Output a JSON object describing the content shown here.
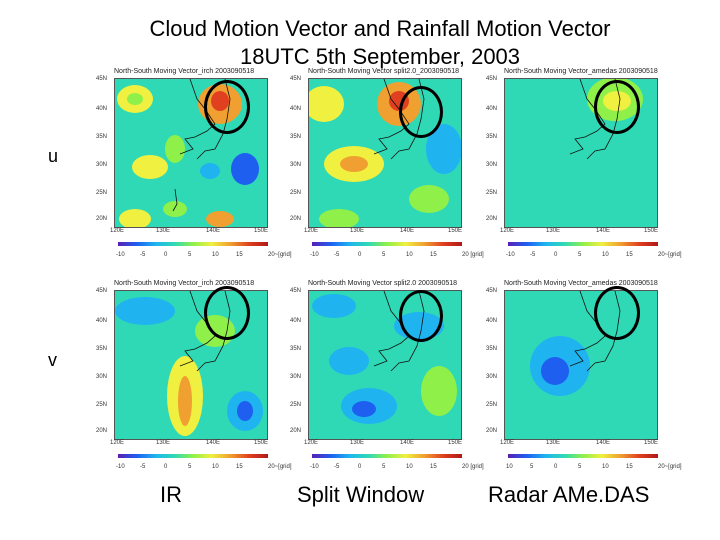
{
  "title": {
    "line1": "Cloud Motion Vector and Rainfall Motion Vector",
    "line2": "18UTC 5th September, 2003"
  },
  "rows": [
    {
      "label": "u"
    },
    {
      "label": "v"
    }
  ],
  "columns": [
    {
      "label": "IR"
    },
    {
      "label": "Split Window"
    },
    {
      "label": "Radar AMe.DAS"
    }
  ],
  "panels": [
    {
      "title": "North-South Moving Vector_irch 2003090518",
      "unit": "20~[grid]"
    },
    {
      "title": "North-South Moving Vector split2.0_2003090518",
      "unit": "20 [grid]"
    },
    {
      "title": "North-South Moving Vector_amedas 2003090518",
      "unit": "20~[grid]"
    },
    {
      "title": "North-South Moving Vector_irch 2003090518",
      "unit": "20~[grid]"
    },
    {
      "title": "North-South Moving Vector split2.0 2003090518",
      "unit": "20 [grid]"
    },
    {
      "title": "North-South Moving Vector_amedas 2003090518",
      "unit": "20~[grid]"
    }
  ],
  "axes": {
    "lat": [
      "45N",
      "40N",
      "35N",
      "30N",
      "25N",
      "20N"
    ],
    "lon": [
      "120E",
      "130E",
      "140E",
      "150E"
    ],
    "colorbar_irsplit": [
      "-10",
      "-5",
      "0",
      "5",
      "10",
      "15"
    ],
    "colorbar_radar": [
      "10",
      "5",
      "0",
      "5",
      "10",
      "15"
    ]
  },
  "colors": {
    "background_field": "#2fd9b5",
    "colorbar": [
      "#5a1fb5",
      "#1f5ff0",
      "#1fb4f0",
      "#2fd9b5",
      "#8ff04a",
      "#f0f040",
      "#f0a030",
      "#e04020",
      "#b01818"
    ]
  }
}
